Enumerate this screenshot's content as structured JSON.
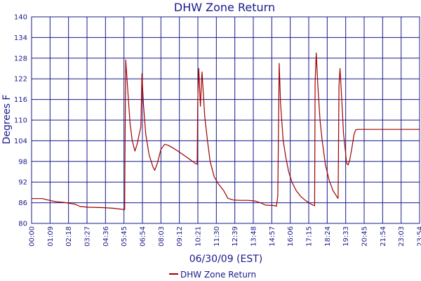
{
  "chart_data": {
    "type": "line",
    "title": "DHW Zone Return",
    "xlabel": "06/30/09 (EST)",
    "ylabel": "Degrees F",
    "ylim": [
      80,
      140
    ],
    "xlim_minutes": [
      0,
      1434
    ],
    "y_ticks": [
      80,
      86,
      92,
      98,
      104,
      110,
      116,
      122,
      128,
      134,
      140
    ],
    "x_ticks": [
      "00:00",
      "01:09",
      "02:18",
      "03:27",
      "04:36",
      "05:45",
      "06:54",
      "08:03",
      "09:12",
      "10:21",
      "11:30",
      "12:39",
      "13:48",
      "14:57",
      "16:06",
      "17:15",
      "18:24",
      "19:33",
      "20:45",
      "21:54",
      "23:03",
      "23:54"
    ],
    "grid": true,
    "legend_position": "bottom-center",
    "colors": {
      "series": "#a00000",
      "grid": "#1a1a8c",
      "text": "#1a1a8c"
    },
    "series": [
      {
        "name": "DHW Zone Return",
        "points": [
          [
            0,
            87.2
          ],
          [
            40,
            87.2
          ],
          [
            60,
            86.8
          ],
          [
            90,
            86.3
          ],
          [
            120,
            86.1
          ],
          [
            160,
            85.6
          ],
          [
            180,
            84.9
          ],
          [
            210,
            84.7
          ],
          [
            260,
            84.6
          ],
          [
            300,
            84.4
          ],
          [
            344,
            84.0
          ],
          [
            345,
            97.0
          ],
          [
            348,
            127.5
          ],
          [
            356,
            118.0
          ],
          [
            364,
            109.0
          ],
          [
            372,
            104.0
          ],
          [
            382,
            101.0
          ],
          [
            390,
            103.0
          ],
          [
            398,
            106.0
          ],
          [
            404,
            108.0
          ],
          [
            408,
            123.5
          ],
          [
            413,
            115.0
          ],
          [
            422,
            106.0
          ],
          [
            434,
            100.0
          ],
          [
            448,
            96.5
          ],
          [
            455,
            95.4
          ],
          [
            465,
            97.5
          ],
          [
            478,
            101.5
          ],
          [
            492,
            103.0
          ],
          [
            505,
            102.7
          ],
          [
            525,
            101.8
          ],
          [
            545,
            100.8
          ],
          [
            570,
            99.4
          ],
          [
            590,
            98.3
          ],
          [
            605,
            97.4
          ],
          [
            612,
            97.2
          ],
          [
            614,
            115.5
          ],
          [
            618,
            125.0
          ],
          [
            624,
            114.0
          ],
          [
            630,
            124.0
          ],
          [
            640,
            111.0
          ],
          [
            650,
            104.0
          ],
          [
            660,
            98.0
          ],
          [
            675,
            93.5
          ],
          [
            690,
            91.5
          ],
          [
            710,
            89.5
          ],
          [
            725,
            87.3
          ],
          [
            745,
            86.8
          ],
          [
            770,
            86.7
          ],
          [
            800,
            86.7
          ],
          [
            825,
            86.5
          ],
          [
            845,
            86.0
          ],
          [
            865,
            85.3
          ],
          [
            895,
            85.2
          ],
          [
            905,
            85.0
          ],
          [
            910,
            88.0
          ],
          [
            915,
            126.5
          ],
          [
            920,
            115.0
          ],
          [
            930,
            104.0
          ],
          [
            940,
            99.0
          ],
          [
            950,
            95.0
          ],
          [
            962,
            92.0
          ],
          [
            978,
            89.5
          ],
          [
            995,
            87.8
          ],
          [
            1010,
            86.8
          ],
          [
            1025,
            86.0
          ],
          [
            1040,
            85.3
          ],
          [
            1046,
            85.1
          ],
          [
            1048,
            121.0
          ],
          [
            1052,
            129.5
          ],
          [
            1058,
            120.0
          ],
          [
            1066,
            110.0
          ],
          [
            1074,
            104.0
          ],
          [
            1086,
            97.0
          ],
          [
            1100,
            92.5
          ],
          [
            1114,
            89.5
          ],
          [
            1124,
            88.3
          ],
          [
            1130,
            87.5
          ],
          [
            1133,
            87.3
          ],
          [
            1136,
            120.0
          ],
          [
            1140,
            125.0
          ],
          [
            1147,
            115.0
          ],
          [
            1153,
            106.0
          ],
          [
            1160,
            101.0
          ],
          [
            1164,
            97.5
          ],
          [
            1170,
            97.0
          ],
          [
            1176,
            98.5
          ],
          [
            1184,
            102.0
          ],
          [
            1192,
            106.0
          ],
          [
            1198,
            107.2
          ],
          [
            1205,
            107.3
          ],
          [
            1434,
            107.3
          ]
        ]
      }
    ]
  }
}
